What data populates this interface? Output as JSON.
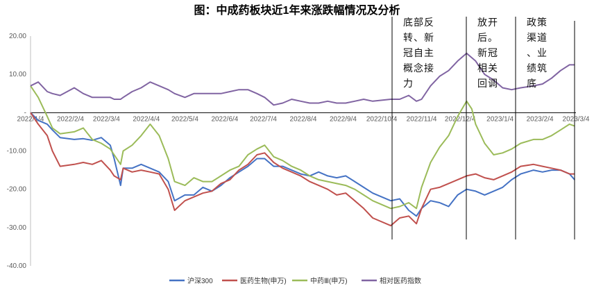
{
  "chart_data": {
    "type": "line",
    "title": "图：中成药板块近1年来涨跌幅情况及分析",
    "xlabel": "",
    "ylabel": "",
    "ylim": [
      -40,
      20
    ],
    "yticks": [
      "20.00",
      "10.00",
      "-",
      "-10.00",
      "-20.00",
      "-30.00",
      "-40.00"
    ],
    "x_ticks": [
      "2022/1/4",
      "2022/2/4",
      "2022/3/4",
      "2022/4/4",
      "2022/5/4",
      "2022/6/4",
      "2022/7/4",
      "2022/8/4",
      "2022/9/4",
      "2022/10/4",
      "2022/11/4",
      "2022/12/4",
      "2023/1/4",
      "2023/2/4",
      "2023/3/4"
    ],
    "legend_position": "bottom",
    "annotations": [
      {
        "lines": [
          "底部反",
          "转、新",
          "冠自主",
          "概念接",
          "力"
        ],
        "after_date": "2022/10/4"
      },
      {
        "lines": [
          "放开",
          "后。",
          "新冠",
          "相关",
          "回调"
        ],
        "after_date": "2022/12/4"
      },
      {
        "lines": [
          "政策",
          "渠道",
          "、业",
          "绩筑",
          "底"
        ],
        "after_date": "2023/1/4"
      }
    ],
    "series": [
      {
        "name": "沪深300",
        "color": "#4472C4",
        "points": [
          [
            "2022/1/4",
            0
          ],
          [
            "2022/1/10",
            -2
          ],
          [
            "2022/1/17",
            -3
          ],
          [
            "2022/1/21",
            -4.5
          ],
          [
            "2022/1/27",
            -6.5
          ],
          [
            "2022/2/7",
            -7
          ],
          [
            "2022/2/14",
            -6.8
          ],
          [
            "2022/2/21",
            -7.2
          ],
          [
            "2022/2/28",
            -6.5
          ],
          [
            "2022/3/7",
            -8.5
          ],
          [
            "2022/3/10",
            -12
          ],
          [
            "2022/3/15",
            -19
          ],
          [
            "2022/3/17",
            -14.5
          ],
          [
            "2022/3/24",
            -14.5
          ],
          [
            "2022/3/31",
            -13.5
          ],
          [
            "2022/4/7",
            -14.5
          ],
          [
            "2022/4/14",
            -15.5
          ],
          [
            "2022/4/21",
            -18
          ],
          [
            "2022/4/26",
            -23
          ],
          [
            "2022/5/4",
            -21.5
          ],
          [
            "2022/5/11",
            -21.5
          ],
          [
            "2022/5/18",
            -19.5
          ],
          [
            "2022/5/25",
            -20.5
          ],
          [
            "2022/6/1",
            -19
          ],
          [
            "2022/6/8",
            -17
          ],
          [
            "2022/6/15",
            -15.5
          ],
          [
            "2022/6/22",
            -14
          ],
          [
            "2022/6/29",
            -12
          ],
          [
            "2022/7/5",
            -12
          ],
          [
            "2022/7/12",
            -14
          ],
          [
            "2022/7/19",
            -14
          ],
          [
            "2022/7/26",
            -15
          ],
          [
            "2022/8/2",
            -16
          ],
          [
            "2022/8/9",
            -16.5
          ],
          [
            "2022/8/16",
            -15.5
          ],
          [
            "2022/8/23",
            -16.5
          ],
          [
            "2022/8/30",
            -17
          ],
          [
            "2022/9/6",
            -16.5
          ],
          [
            "2022/9/13",
            -18
          ],
          [
            "2022/9/20",
            -19.5
          ],
          [
            "2022/9/27",
            -21
          ],
          [
            "2022/10/11",
            -23
          ],
          [
            "2022/10/18",
            -22.5
          ],
          [
            "2022/10/25",
            -25.5
          ],
          [
            "2022/10/31",
            -27
          ],
          [
            "2022/11/4",
            -25
          ],
          [
            "2022/11/11",
            -23
          ],
          [
            "2022/11/18",
            -23.5
          ],
          [
            "2022/11/25",
            -24.5
          ],
          [
            "2022/12/2",
            -21.5
          ],
          [
            "2022/12/9",
            -20
          ],
          [
            "2022/12/16",
            -20.5
          ],
          [
            "2022/12/23",
            -21.5
          ],
          [
            "2022/12/30",
            -20.5
          ],
          [
            "2023/1/6",
            -19.5
          ],
          [
            "2023/1/13",
            -17.5
          ],
          [
            "2023/1/20",
            -16
          ],
          [
            "2023/1/30",
            -15
          ],
          [
            "2023/2/6",
            -15.5
          ],
          [
            "2023/2/13",
            -15
          ],
          [
            "2023/2/20",
            -15
          ],
          [
            "2023/2/27",
            -16
          ],
          [
            "2023/3/3",
            -17.5
          ]
        ]
      },
      {
        "name": "医药生物(申万)",
        "color": "#C0504D",
        "points": [
          [
            "2022/1/4",
            0
          ],
          [
            "2022/1/10",
            -3
          ],
          [
            "2022/1/17",
            -6
          ],
          [
            "2022/1/21",
            -10
          ],
          [
            "2022/1/27",
            -14
          ],
          [
            "2022/2/7",
            -13.5
          ],
          [
            "2022/2/14",
            -13
          ],
          [
            "2022/2/21",
            -13.5
          ],
          [
            "2022/2/28",
            -12.5
          ],
          [
            "2022/3/7",
            -15
          ],
          [
            "2022/3/10",
            -16.5
          ],
          [
            "2022/3/15",
            -17.5
          ],
          [
            "2022/3/17",
            -14.5
          ],
          [
            "2022/3/24",
            -15.5
          ],
          [
            "2022/3/31",
            -15
          ],
          [
            "2022/4/7",
            -15.5
          ],
          [
            "2022/4/14",
            -16
          ],
          [
            "2022/4/21",
            -20
          ],
          [
            "2022/4/26",
            -25.5
          ],
          [
            "2022/5/4",
            -23
          ],
          [
            "2022/5/11",
            -22
          ],
          [
            "2022/5/18",
            -21
          ],
          [
            "2022/5/25",
            -20.5
          ],
          [
            "2022/6/1",
            -18.5
          ],
          [
            "2022/6/8",
            -17.5
          ],
          [
            "2022/6/15",
            -15
          ],
          [
            "2022/6/22",
            -13.5
          ],
          [
            "2022/6/29",
            -11
          ],
          [
            "2022/7/5",
            -10.5
          ],
          [
            "2022/7/12",
            -13
          ],
          [
            "2022/7/19",
            -14.5
          ],
          [
            "2022/7/26",
            -15.5
          ],
          [
            "2022/8/2",
            -16.5
          ],
          [
            "2022/8/9",
            -18
          ],
          [
            "2022/8/16",
            -19
          ],
          [
            "2022/8/23",
            -20
          ],
          [
            "2022/8/30",
            -21.5
          ],
          [
            "2022/9/6",
            -21
          ],
          [
            "2022/9/13",
            -23
          ],
          [
            "2022/9/20",
            -25
          ],
          [
            "2022/9/27",
            -27.5
          ],
          [
            "2022/10/11",
            -29.5
          ],
          [
            "2022/10/18",
            -27.5
          ],
          [
            "2022/10/25",
            -27
          ],
          [
            "2022/10/31",
            -29
          ],
          [
            "2022/11/4",
            -25
          ],
          [
            "2022/11/11",
            -20
          ],
          [
            "2022/11/18",
            -19.5
          ],
          [
            "2022/11/25",
            -18.5
          ],
          [
            "2022/12/2",
            -17.5
          ],
          [
            "2022/12/9",
            -16.5
          ],
          [
            "2022/12/16",
            -16
          ],
          [
            "2022/12/23",
            -17
          ],
          [
            "2022/12/30",
            -17.5
          ],
          [
            "2023/1/6",
            -16.5
          ],
          [
            "2023/1/13",
            -15.5
          ],
          [
            "2023/1/20",
            -14
          ],
          [
            "2023/1/30",
            -13.5
          ],
          [
            "2023/2/6",
            -14
          ],
          [
            "2023/2/13",
            -14.5
          ],
          [
            "2023/2/20",
            -15
          ],
          [
            "2023/2/27",
            -16
          ],
          [
            "2023/3/3",
            -16
          ]
        ]
      },
      {
        "name": "中药Ⅲ(申万)",
        "color": "#9BBB59",
        "points": [
          [
            "2022/1/4",
            7
          ],
          [
            "2022/1/10",
            4
          ],
          [
            "2022/1/17",
            -1
          ],
          [
            "2022/1/21",
            -4
          ],
          [
            "2022/1/27",
            -5.5
          ],
          [
            "2022/2/7",
            -5
          ],
          [
            "2022/2/14",
            -4
          ],
          [
            "2022/2/21",
            -7
          ],
          [
            "2022/2/28",
            -8
          ],
          [
            "2022/3/7",
            -9.5
          ],
          [
            "2022/3/10",
            -11
          ],
          [
            "2022/3/15",
            -13.5
          ],
          [
            "2022/3/17",
            -10
          ],
          [
            "2022/3/24",
            -8.5
          ],
          [
            "2022/3/31",
            -6
          ],
          [
            "2022/4/7",
            -3
          ],
          [
            "2022/4/14",
            -6
          ],
          [
            "2022/4/21",
            -12
          ],
          [
            "2022/4/26",
            -18
          ],
          [
            "2022/5/4",
            -19
          ],
          [
            "2022/5/11",
            -17
          ],
          [
            "2022/5/18",
            -18
          ],
          [
            "2022/5/25",
            -18
          ],
          [
            "2022/6/1",
            -16.5
          ],
          [
            "2022/6/8",
            -15
          ],
          [
            "2022/6/15",
            -14
          ],
          [
            "2022/6/22",
            -11
          ],
          [
            "2022/6/29",
            -9.5
          ],
          [
            "2022/7/5",
            -8.5
          ],
          [
            "2022/7/12",
            -11.5
          ],
          [
            "2022/7/19",
            -12.5
          ],
          [
            "2022/7/26",
            -14
          ],
          [
            "2022/8/2",
            -15
          ],
          [
            "2022/8/9",
            -16.5
          ],
          [
            "2022/8/16",
            -17.5
          ],
          [
            "2022/8/23",
            -18
          ],
          [
            "2022/8/30",
            -18.5
          ],
          [
            "2022/9/6",
            -19
          ],
          [
            "2022/9/13",
            -20
          ],
          [
            "2022/9/20",
            -21.5
          ],
          [
            "2022/9/27",
            -23
          ],
          [
            "2022/10/11",
            -25
          ],
          [
            "2022/10/18",
            -24.5
          ],
          [
            "2022/10/25",
            -23.5
          ],
          [
            "2022/10/31",
            -25
          ],
          [
            "2022/11/4",
            -19.5
          ],
          [
            "2022/11/11",
            -13
          ],
          [
            "2022/11/18",
            -9
          ],
          [
            "2022/11/25",
            -6
          ],
          [
            "2022/12/2",
            -1
          ],
          [
            "2022/12/9",
            3
          ],
          [
            "2022/12/13",
            1
          ],
          [
            "2022/12/16",
            -3
          ],
          [
            "2022/12/23",
            -8
          ],
          [
            "2022/12/30",
            -11
          ],
          [
            "2023/1/6",
            -10.5
          ],
          [
            "2023/1/13",
            -9.5
          ],
          [
            "2023/1/20",
            -8
          ],
          [
            "2023/1/30",
            -7
          ],
          [
            "2023/2/6",
            -7
          ],
          [
            "2023/2/13",
            -6
          ],
          [
            "2023/2/20",
            -4.5
          ],
          [
            "2023/2/27",
            -3
          ],
          [
            "2023/3/3",
            -3.5
          ]
        ]
      },
      {
        "name": "相对医药指数",
        "color": "#8064A2",
        "points": [
          [
            "2022/1/4",
            7
          ],
          [
            "2022/1/10",
            8
          ],
          [
            "2022/1/17",
            5.5
          ],
          [
            "2022/1/21",
            5
          ],
          [
            "2022/1/27",
            4.5
          ],
          [
            "2022/2/7",
            6.5
          ],
          [
            "2022/2/14",
            5
          ],
          [
            "2022/2/21",
            4
          ],
          [
            "2022/2/28",
            4
          ],
          [
            "2022/3/7",
            4
          ],
          [
            "2022/3/10",
            3.5
          ],
          [
            "2022/3/15",
            3.5
          ],
          [
            "2022/3/17",
            4
          ],
          [
            "2022/3/24",
            5.5
          ],
          [
            "2022/3/31",
            6.5
          ],
          [
            "2022/4/7",
            8
          ],
          [
            "2022/4/14",
            7
          ],
          [
            "2022/4/21",
            6
          ],
          [
            "2022/4/26",
            5
          ],
          [
            "2022/5/4",
            4
          ],
          [
            "2022/5/11",
            5
          ],
          [
            "2022/5/18",
            5
          ],
          [
            "2022/5/25",
            5
          ],
          [
            "2022/6/1",
            5
          ],
          [
            "2022/6/8",
            5.5
          ],
          [
            "2022/6/15",
            6
          ],
          [
            "2022/6/22",
            6
          ],
          [
            "2022/6/29",
            5
          ],
          [
            "2022/7/5",
            4
          ],
          [
            "2022/7/12",
            2
          ],
          [
            "2022/7/19",
            2.5
          ],
          [
            "2022/7/26",
            3.5
          ],
          [
            "2022/8/2",
            3
          ],
          [
            "2022/8/9",
            2.5
          ],
          [
            "2022/8/16",
            2.5
          ],
          [
            "2022/8/23",
            3
          ],
          [
            "2022/8/30",
            2.5
          ],
          [
            "2022/9/6",
            2.5
          ],
          [
            "2022/9/13",
            3
          ],
          [
            "2022/9/20",
            3.5
          ],
          [
            "2022/9/27",
            3
          ],
          [
            "2022/10/11",
            3.5
          ],
          [
            "2022/10/18",
            3.5
          ],
          [
            "2022/10/25",
            4.5
          ],
          [
            "2022/10/31",
            3
          ],
          [
            "2022/11/4",
            3.5
          ],
          [
            "2022/11/11",
            7
          ],
          [
            "2022/11/18",
            9.5
          ],
          [
            "2022/11/25",
            11
          ],
          [
            "2022/12/2",
            13.5
          ],
          [
            "2022/12/9",
            15.5
          ],
          [
            "2022/12/16",
            13.5
          ],
          [
            "2022/12/23",
            10
          ],
          [
            "2022/12/30",
            8.5
          ],
          [
            "2023/1/6",
            6.5
          ],
          [
            "2023/1/13",
            6
          ],
          [
            "2023/1/20",
            6.5
          ],
          [
            "2023/1/30",
            7
          ],
          [
            "2023/2/6",
            7.5
          ],
          [
            "2023/2/13",
            9
          ],
          [
            "2023/2/20",
            11
          ],
          [
            "2023/2/27",
            12.5
          ],
          [
            "2023/3/3",
            12.5
          ]
        ]
      }
    ]
  }
}
